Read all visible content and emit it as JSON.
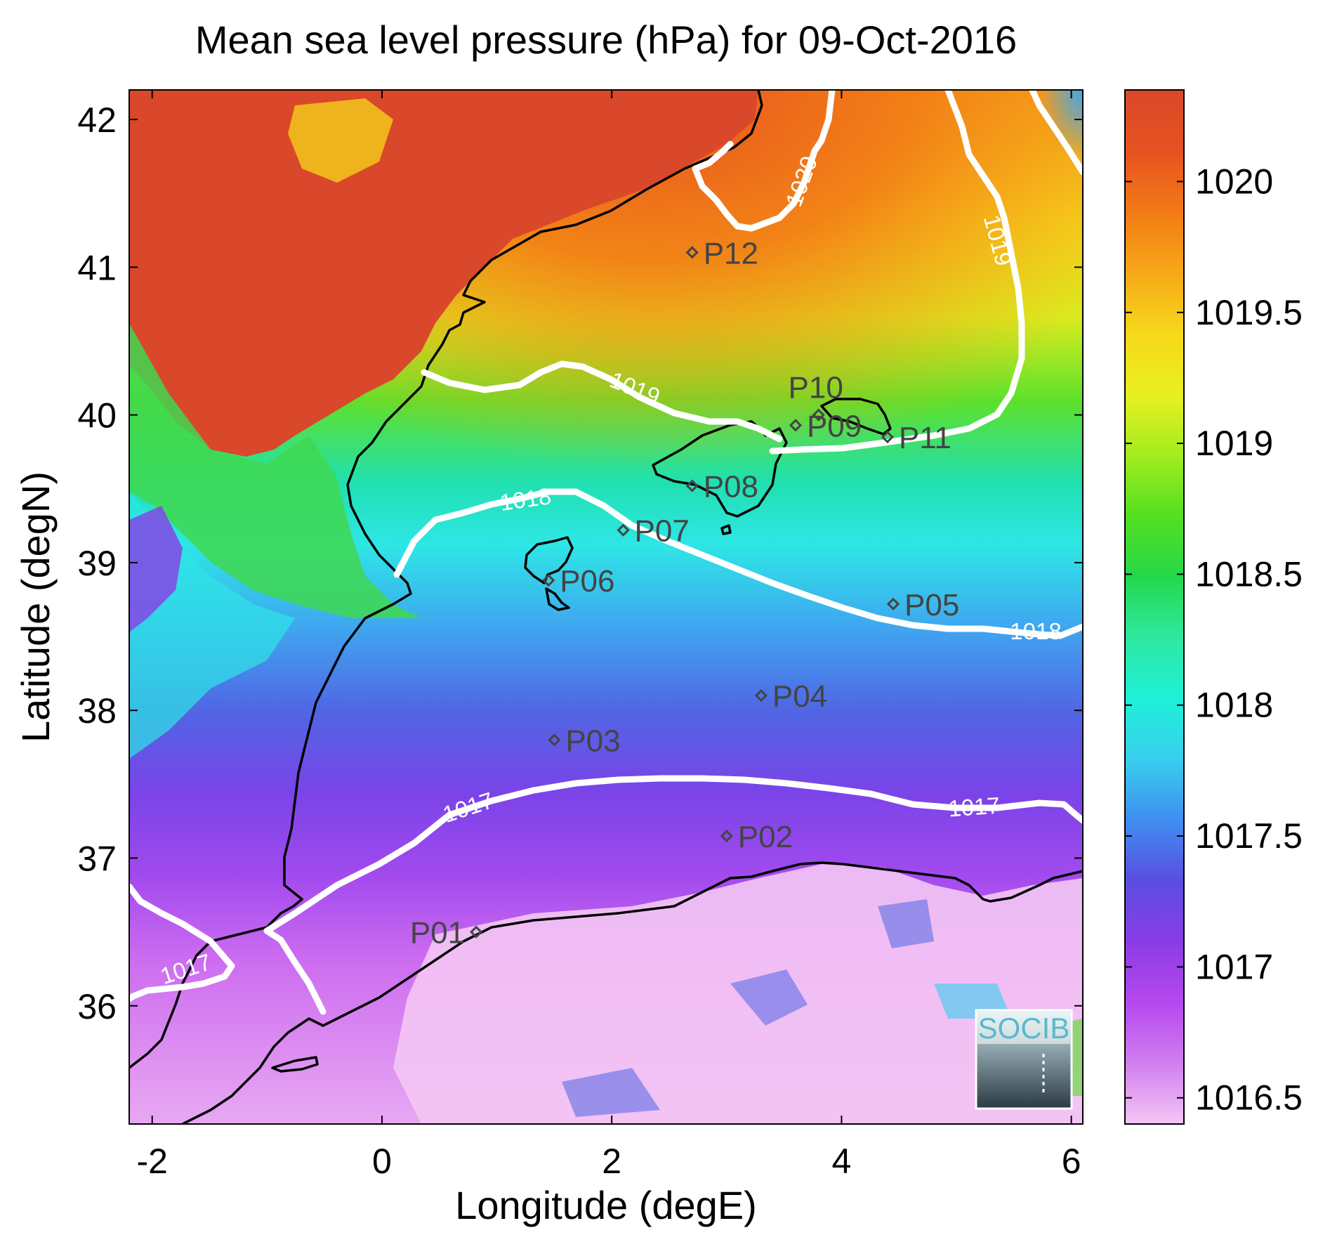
{
  "figure": {
    "title": "Mean sea level pressure (hPa) for 09-Oct-2016",
    "xlabel": "Longitude (degE)",
    "ylabel": "Latitude (degN)",
    "xticks": [
      "-2",
      "0",
      "2",
      "4",
      "6"
    ],
    "yticks": [
      "36",
      "37",
      "38",
      "39",
      "40",
      "41",
      "42"
    ],
    "logo_text": "SOCIB"
  },
  "colorbar": {
    "ticks": [
      "1016.5",
      "1017",
      "1017.5",
      "1018",
      "1018.5",
      "1019",
      "1019.5",
      "1020"
    ],
    "range": [
      1016.4,
      1020.35
    ],
    "colors": [
      "#f4c6f4",
      "#d17ef0",
      "#b648ee",
      "#8a3ce6",
      "#5a4ee0",
      "#3f8ef0",
      "#38cfee",
      "#1ef0d8",
      "#2ee8a0",
      "#24d84a",
      "#54e020",
      "#a4ec20",
      "#e8f020",
      "#f6d81a",
      "#f6a818",
      "#f27a16",
      "#e65220",
      "#d9482a"
    ]
  },
  "chart_data": {
    "type": "heatmap",
    "title": "Mean sea level pressure (hPa) for 09-Oct-2016",
    "xlabel": "Longitude (degE)",
    "ylabel": "Latitude (degN)",
    "xlim": [
      -2.2,
      6.1
    ],
    "ylim": [
      35.2,
      42.2
    ],
    "colorbar_range": [
      1016.4,
      1020.35
    ],
    "contour_levels": [
      1017,
      1018,
      1019,
      1020
    ],
    "stations": [
      {
        "name": "P01",
        "lon": 0.82,
        "lat": 36.5
      },
      {
        "name": "P02",
        "lon": 3.0,
        "lat": 37.15
      },
      {
        "name": "P03",
        "lon": 1.5,
        "lat": 37.8
      },
      {
        "name": "P04",
        "lon": 3.3,
        "lat": 38.1
      },
      {
        "name": "P05",
        "lon": 4.45,
        "lat": 38.72
      },
      {
        "name": "P06",
        "lon": 1.45,
        "lat": 38.88
      },
      {
        "name": "P07",
        "lon": 2.1,
        "lat": 39.22
      },
      {
        "name": "P08",
        "lon": 2.7,
        "lat": 39.52
      },
      {
        "name": "P09",
        "lon": 3.6,
        "lat": 39.93
      },
      {
        "name": "P10",
        "lon": 3.8,
        "lat": 40.0
      },
      {
        "name": "P11",
        "lon": 4.4,
        "lat": 39.85
      },
      {
        "name": "P12",
        "lon": 2.7,
        "lat": 41.1
      }
    ],
    "contour_labels": [
      {
        "text": "1020",
        "lon": 3.7,
        "lat": 41.58
      },
      {
        "text": "1019",
        "lon": 5.25,
        "lat": 41.15
      },
      {
        "text": "1019",
        "lon": 2.2,
        "lat": 40.1
      },
      {
        "text": "1018",
        "lon": 1.2,
        "lat": 39.37
      },
      {
        "text": "1018",
        "lon": 5.25,
        "lat": 38.52
      },
      {
        "text": "1017",
        "lon": 0.7,
        "lat": 37.13
      },
      {
        "text": "1017",
        "lon": 5.0,
        "lat": 37.15
      },
      {
        "text": "1017",
        "lon": -1.7,
        "lat": 36.2
      }
    ]
  }
}
